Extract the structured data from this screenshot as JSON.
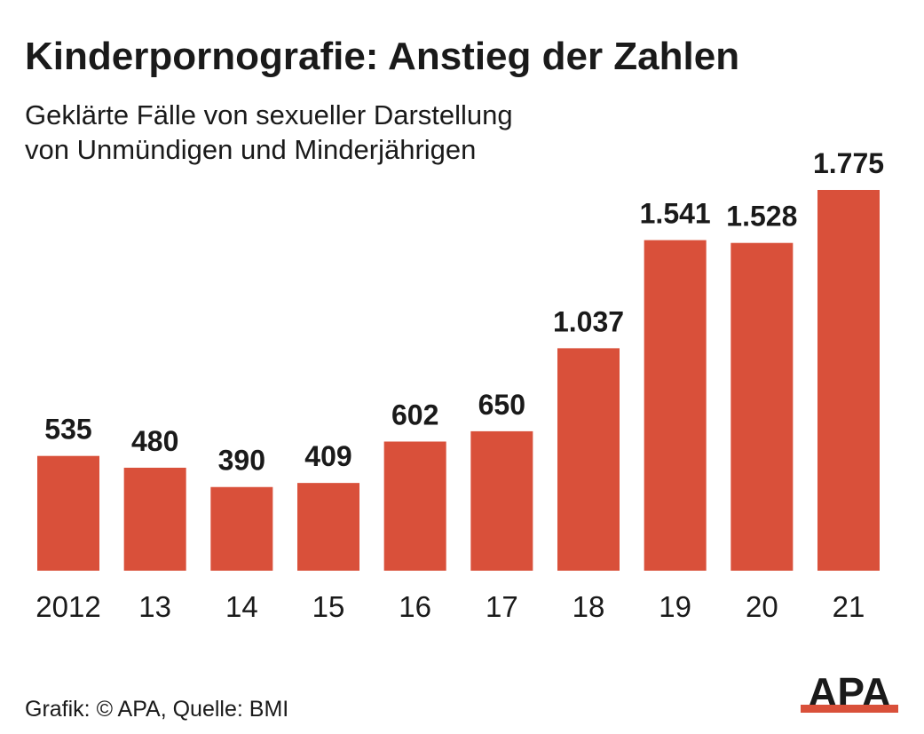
{
  "chart_data": {
    "type": "bar",
    "title": "Kinderpornografie: Anstieg der Zahlen",
    "subtitle": [
      "Geklärte Fälle von sexueller Darstellung",
      "von Unmündigen und Minderjährigen"
    ],
    "categories": [
      "2012",
      "13",
      "14",
      "15",
      "16",
      "17",
      "18",
      "19",
      "20",
      "21"
    ],
    "values": [
      535,
      480,
      390,
      409,
      602,
      650,
      1037,
      1541,
      1528,
      1775
    ],
    "value_labels": [
      "535",
      "480",
      "390",
      "409",
      "602",
      "650",
      "1.037",
      "1.541",
      "1.528",
      "1.775"
    ],
    "color": "#d9503a",
    "source": "Grafik: © APA, Quelle: BMI",
    "logo": "APA"
  }
}
